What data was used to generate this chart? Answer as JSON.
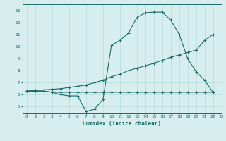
{
  "line1_x": [
    0,
    1,
    2,
    3,
    4,
    5,
    6,
    7,
    8,
    9,
    10,
    11,
    12,
    13,
    14,
    15,
    16,
    17,
    18,
    19,
    20,
    21,
    22
  ],
  "line1_y": [
    6.3,
    6.3,
    6.3,
    6.2,
    6.0,
    5.9,
    5.9,
    4.6,
    4.8,
    5.6,
    10.1,
    10.5,
    11.1,
    12.4,
    12.8,
    12.85,
    12.85,
    12.2,
    11.0,
    9.0,
    7.9,
    7.2,
    6.2
  ],
  "line2_x": [
    0,
    1,
    2,
    3,
    4,
    5,
    6,
    7,
    8,
    9,
    10,
    11,
    12,
    13,
    14,
    15,
    16,
    17,
    18,
    19,
    20,
    21,
    22
  ],
  "line2_y": [
    6.3,
    6.35,
    6.4,
    6.45,
    6.5,
    6.6,
    6.7,
    6.8,
    7.0,
    7.2,
    7.5,
    7.7,
    8.0,
    8.2,
    8.4,
    8.6,
    8.85,
    9.1,
    9.3,
    9.5,
    9.7,
    10.5,
    11.0
  ],
  "line3_x": [
    0,
    1,
    2,
    3,
    4,
    5,
    6,
    7,
    8,
    9,
    10,
    11,
    12,
    13,
    14,
    15,
    16,
    17,
    18,
    19,
    20,
    21,
    22
  ],
  "line3_y": [
    6.3,
    6.3,
    6.3,
    6.2,
    6.2,
    6.2,
    6.2,
    6.2,
    6.2,
    6.2,
    6.2,
    6.2,
    6.2,
    6.2,
    6.2,
    6.2,
    6.2,
    6.2,
    6.2,
    6.2,
    6.2,
    6.2,
    6.2
  ],
  "line_color": "#1a6b6b",
  "bg_color": "#d6eeee",
  "grid_color": "#b8dcdc",
  "xlabel": "Humidex (Indice chaleur)",
  "xlim": [
    -0.5,
    23
  ],
  "ylim": [
    4.5,
    13.5
  ],
  "xticks": [
    0,
    1,
    2,
    3,
    4,
    5,
    6,
    7,
    8,
    9,
    10,
    11,
    12,
    13,
    14,
    15,
    16,
    17,
    18,
    19,
    20,
    21,
    22,
    23
  ],
  "yticks": [
    5,
    6,
    7,
    8,
    9,
    10,
    11,
    12,
    13
  ]
}
